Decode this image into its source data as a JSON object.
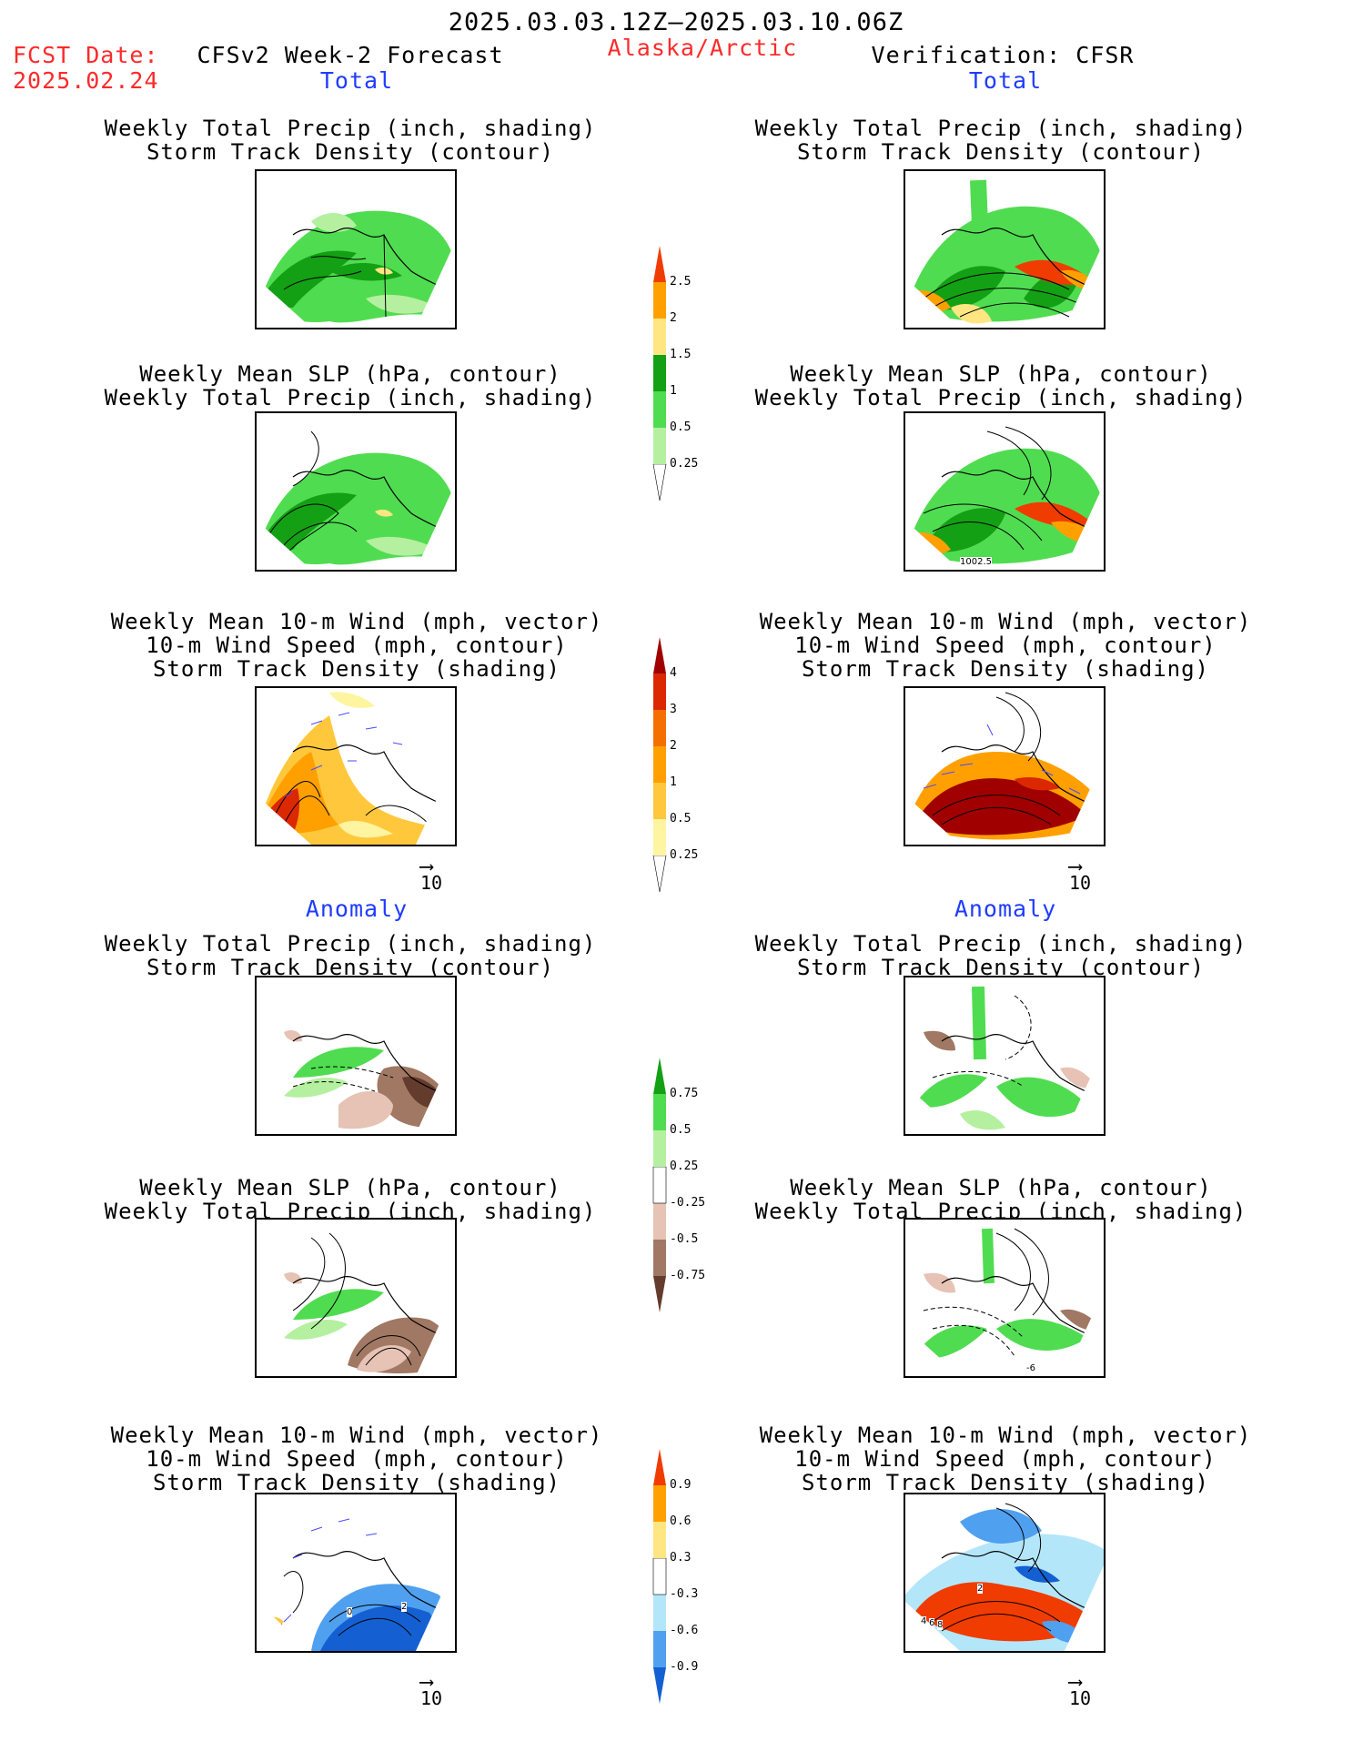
{
  "header": {
    "period": "2025.03.03.12Z–2025.03.10.06Z",
    "fcst_label": "FCST Date:",
    "fcst_date": "2025.02.24",
    "model": "CFSv2 Week-2 Forecast",
    "region": "Alaska/Arctic",
    "verification": "Verification: CFSR"
  },
  "sections": {
    "total": "Total",
    "anomaly": "Anomaly"
  },
  "titles": {
    "precip_track": [
      "Weekly Total Precip (inch, shading)",
      "Storm Track Density (contour)"
    ],
    "slp_precip": [
      "Weekly Mean SLP (hPa, contour)",
      "Weekly Total Precip (inch, shading)"
    ],
    "wind_track": [
      "Weekly Mean 10-m Wind (mph, vector)",
      "10-m Wind Speed (mph, contour)",
      "Storm Track Density (shading)"
    ]
  },
  "vector_reference": "10",
  "map_labels": {
    "total_cfsr_slp": "1002.5",
    "anom_cfsr_slp": "-6",
    "anom_fcst_wind_a": "0",
    "anom_fcst_wind_b": "2",
    "anom_cfsr_wind_a": "2",
    "anom_cfsr_wind_b": "4",
    "anom_cfsr_wind_c": "6",
    "anom_cfsr_wind_d": "8"
  },
  "colorbars": {
    "precip_total": {
      "ticks": [
        "2.5",
        "2",
        "1.5",
        "1",
        "0.5",
        "0.25"
      ],
      "colors": [
        "#ffffff",
        "#b4f0a0",
        "#50dc50",
        "#14a014",
        "#ffe682",
        "#ffa000",
        "#f03c00"
      ]
    },
    "storm_total": {
      "ticks": [
        "4",
        "3",
        "2",
        "1",
        "0.5",
        "0.25"
      ],
      "colors": [
        "#ffffff",
        "#fff4a0",
        "#ffc83c",
        "#ffa000",
        "#f56e00",
        "#dc2800",
        "#a00000"
      ]
    },
    "precip_anom": {
      "ticks": [
        "0.75",
        "0.5",
        "0.25",
        "-0.25",
        "-0.5",
        "-0.75"
      ],
      "colors": [
        "#643c2d",
        "#a07864",
        "#e6c3b4",
        "#ffffff",
        "#b4f0a0",
        "#50dc50",
        "#14a014"
      ]
    },
    "storm_anom": {
      "ticks": [
        "0.9",
        "0.6",
        "0.3",
        "-0.3",
        "-0.6",
        "-0.9"
      ],
      "colors": [
        "#1460d2",
        "#50a0f0",
        "#b4e6fa",
        "#ffffff",
        "#ffe682",
        "#ffa000",
        "#f03c00"
      ]
    }
  }
}
